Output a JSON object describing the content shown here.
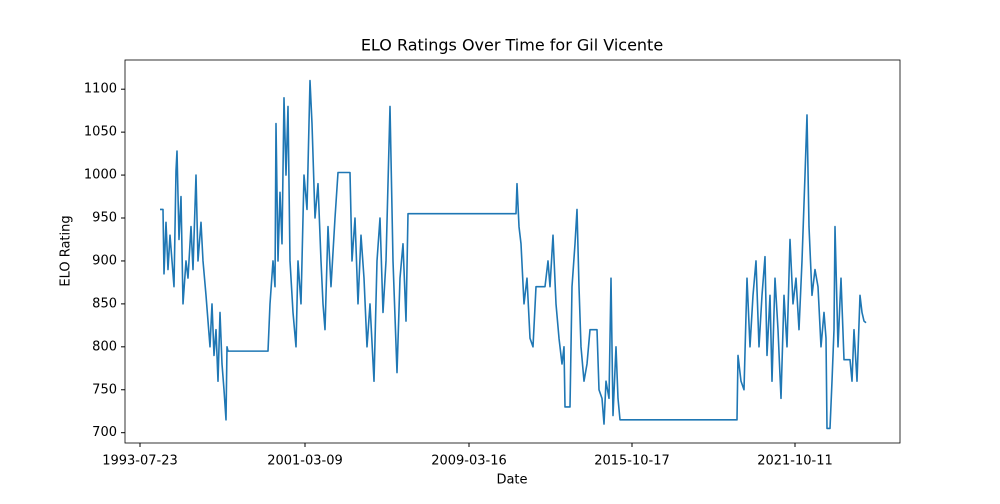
{
  "chart_data": {
    "type": "line",
    "title": "ELO Ratings Over Time for Gil Vicente",
    "x_label": "Date",
    "y_label": "ELO Rating",
    "x": [
      0,
      3,
      4,
      6,
      8,
      10,
      12,
      14,
      16,
      17,
      19,
      21,
      23,
      26,
      28,
      31,
      33,
      36,
      38,
      41,
      43,
      46,
      48,
      50,
      52,
      54,
      56,
      58,
      60,
      62,
      64,
      66,
      67,
      68,
      108,
      110,
      113,
      115,
      116,
      118,
      120,
      122,
      124,
      126,
      128,
      130,
      133,
      136,
      138,
      141,
      144,
      147,
      150,
      152,
      155,
      158,
      161,
      163,
      165,
      168,
      171,
      175,
      178,
      190,
      192,
      195,
      198,
      201,
      204,
      207,
      210,
      214,
      217,
      220,
      223,
      226,
      230,
      233,
      237,
      240,
      243,
      246,
      248,
      356,
      357,
      359,
      361,
      364,
      367,
      370,
      373,
      376,
      385,
      388,
      390,
      393,
      396,
      399,
      402,
      404,
      405,
      410,
      412,
      415,
      417,
      419,
      421,
      424,
      427,
      430,
      437,
      439,
      442,
      444,
      446,
      449,
      451,
      453,
      456,
      458,
      460,
      577,
      578,
      581,
      584,
      587,
      590,
      593,
      596,
      599,
      602,
      605,
      607,
      610,
      612,
      615,
      618,
      621,
      624,
      627,
      630,
      633,
      636,
      639,
      642,
      645,
      647,
      649,
      652,
      655,
      658,
      661,
      664,
      666,
      667,
      670,
      672,
      674,
      675,
      678,
      681,
      684,
      690,
      692,
      694,
      697,
      700,
      702,
      704,
      706
    ],
    "series": [
      {
        "name": "ELO Rating",
        "color": "#1f77b4",
        "values": [
          960,
          960,
          885,
          945,
          890,
          930,
          900,
          870,
          1005,
          1028,
          925,
          975,
          850,
          900,
          880,
          940,
          890,
          1000,
          900,
          945,
          900,
          860,
          830,
          800,
          850,
          790,
          820,
          760,
          840,
          780,
          750,
          715,
          800,
          795,
          795,
          850,
          900,
          870,
          1060,
          900,
          980,
          920,
          1090,
          1000,
          1080,
          900,
          840,
          800,
          900,
          850,
          1000,
          960,
          1110,
          1060,
          950,
          990,
          900,
          850,
          820,
          940,
          870,
          950,
          1003,
          1003,
          900,
          950,
          850,
          930,
          880,
          800,
          850,
          760,
          900,
          950,
          840,
          900,
          1080,
          900,
          770,
          880,
          920,
          830,
          955,
          955,
          990,
          940,
          920,
          850,
          880,
          810,
          800,
          870,
          870,
          900,
          870,
          930,
          850,
          810,
          780,
          800,
          730,
          730,
          870,
          920,
          960,
          870,
          800,
          760,
          780,
          820,
          820,
          750,
          740,
          710,
          760,
          740,
          880,
          720,
          800,
          740,
          715,
          715,
          790,
          760,
          750,
          880,
          800,
          860,
          900,
          800,
          860,
          905,
          790,
          860,
          760,
          880,
          820,
          740,
          860,
          800,
          925,
          850,
          880,
          820,
          900,
          1000,
          1070,
          940,
          860,
          890,
          870,
          800,
          840,
          810,
          705,
          705,
          760,
          820,
          940,
          800,
          880,
          785,
          785,
          760,
          820,
          760,
          860,
          840,
          830,
          828
        ]
      }
    ],
    "xlim": [
      -35,
      740
    ],
    "xticks": [
      {
        "value": -20,
        "label": "1993-07-23"
      },
      {
        "value": 145,
        "label": "2001-03-09"
      },
      {
        "value": 309,
        "label": "2009-03-16"
      },
      {
        "value": 472,
        "label": "2015-10-17"
      },
      {
        "value": 635,
        "label": "2021-10-11"
      }
    ],
    "ylim": [
      688,
      1134
    ],
    "yticks": [
      700,
      750,
      800,
      850,
      900,
      950,
      1000,
      1050,
      1100
    ],
    "grid": false
  }
}
